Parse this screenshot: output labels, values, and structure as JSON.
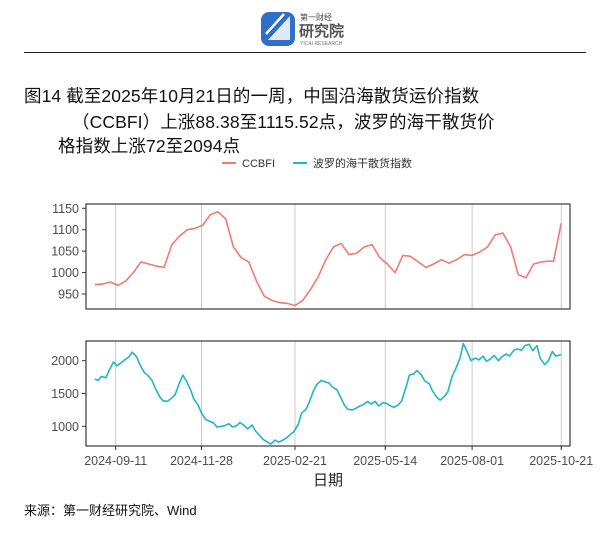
{
  "header": {
    "logo_text_cn": "第一财经",
    "logo_text_main": "研究院",
    "logo_text_sub": "YICAI RESEARCH"
  },
  "title": {
    "line1": "图14  截至2025年10月21日的一周，中国沿海散货运价指数",
    "line2": "（CCBFI）上涨88.38至1115.52点，波罗的海干散货价",
    "line3": "格指数上涨72至2094点"
  },
  "source": "来源：第一财经研究院、Wind",
  "colors": {
    "ccbfi": "#F07B72",
    "bdi": "#1FB8C3",
    "grid": "#BEBEBE",
    "axis_text": "#4D4D4D"
  },
  "chart_data": {
    "type": "line",
    "xlabel": "日期",
    "x_ticks": [
      "2024-09-11",
      "2024-11-28",
      "2025-02-21",
      "2025-05-14",
      "2025-08-01",
      "2025-10-21"
    ],
    "x_range": [
      "2024-08-15",
      "2025-10-29"
    ],
    "legend": {
      "placement": "top",
      "entries": [
        "CCBFI",
        "波罗的海干散货指数"
      ]
    },
    "panels": [
      {
        "series": "CCBFI",
        "ylim": [
          915,
          1160
        ],
        "y_ticks": [
          950,
          1000,
          1050,
          1100,
          1150
        ],
        "points": [
          [
            "2024-08-23",
            972
          ],
          [
            "2024-08-30",
            973
          ],
          [
            "2024-09-06",
            978
          ],
          [
            "2024-09-13",
            970
          ],
          [
            "2024-09-20",
            980
          ],
          [
            "2024-09-27",
            1000
          ],
          [
            "2024-10-04",
            1025
          ],
          [
            "2024-10-11",
            1020
          ],
          [
            "2024-10-18",
            1015
          ],
          [
            "2024-10-25",
            1012
          ],
          [
            "2024-11-01",
            1065
          ],
          [
            "2024-11-08",
            1085
          ],
          [
            "2024-11-15",
            1100
          ],
          [
            "2024-11-22",
            1103
          ],
          [
            "2024-11-29",
            1110
          ],
          [
            "2024-12-06",
            1135
          ],
          [
            "2024-12-13",
            1142
          ],
          [
            "2024-12-20",
            1125
          ],
          [
            "2024-12-27",
            1060
          ],
          [
            "2025-01-03",
            1035
          ],
          [
            "2025-01-10",
            1025
          ],
          [
            "2025-01-17",
            980
          ],
          [
            "2025-01-24",
            945
          ],
          [
            "2025-01-31",
            935
          ],
          [
            "2025-02-07",
            930
          ],
          [
            "2025-02-14",
            928
          ],
          [
            "2025-02-21",
            923
          ],
          [
            "2025-02-28",
            935
          ],
          [
            "2025-03-07",
            960
          ],
          [
            "2025-03-14",
            990
          ],
          [
            "2025-03-21",
            1030
          ],
          [
            "2025-03-28",
            1060
          ],
          [
            "2025-04-04",
            1068
          ],
          [
            "2025-04-11",
            1042
          ],
          [
            "2025-04-18",
            1045
          ],
          [
            "2025-04-25",
            1060
          ],
          [
            "2025-05-02",
            1065
          ],
          [
            "2025-05-09",
            1035
          ],
          [
            "2025-05-16",
            1020
          ],
          [
            "2025-05-23",
            1000
          ],
          [
            "2025-05-30",
            1040
          ],
          [
            "2025-06-06",
            1038
          ],
          [
            "2025-06-13",
            1025
          ],
          [
            "2025-06-20",
            1012
          ],
          [
            "2025-06-27",
            1020
          ],
          [
            "2025-07-04",
            1030
          ],
          [
            "2025-07-11",
            1022
          ],
          [
            "2025-07-18",
            1030
          ],
          [
            "2025-07-25",
            1042
          ],
          [
            "2025-08-01",
            1040
          ],
          [
            "2025-08-08",
            1048
          ],
          [
            "2025-08-15",
            1060
          ],
          [
            "2025-08-22",
            1088
          ],
          [
            "2025-08-29",
            1092
          ],
          [
            "2025-09-05",
            1060
          ],
          [
            "2025-09-12",
            995
          ],
          [
            "2025-09-19",
            988
          ],
          [
            "2025-09-26",
            1020
          ],
          [
            "2025-10-03",
            1025
          ],
          [
            "2025-10-10",
            1027
          ],
          [
            "2025-10-14",
            1026
          ],
          [
            "2025-10-21",
            1115
          ]
        ]
      },
      {
        "series": "波罗的海干散货指数",
        "ylim": [
          700,
          2300
        ],
        "y_ticks": [
          1000,
          1500,
          2000
        ],
        "points": [
          [
            "2024-08-23",
            1720
          ],
          [
            "2024-08-26",
            1700
          ],
          [
            "2024-08-29",
            1760
          ],
          [
            "2024-09-02",
            1740
          ],
          [
            "2024-09-05",
            1850
          ],
          [
            "2024-09-09",
            1980
          ],
          [
            "2024-09-12",
            1920
          ],
          [
            "2024-09-16",
            1970
          ],
          [
            "2024-09-19",
            2010
          ],
          [
            "2024-09-23",
            2060
          ],
          [
            "2024-09-26",
            2130
          ],
          [
            "2024-09-30",
            2060
          ],
          [
            "2024-10-03",
            1940
          ],
          [
            "2024-10-07",
            1820
          ],
          [
            "2024-10-10",
            1780
          ],
          [
            "2024-10-14",
            1700
          ],
          [
            "2024-10-17",
            1580
          ],
          [
            "2024-10-21",
            1450
          ],
          [
            "2024-10-24",
            1390
          ],
          [
            "2024-10-28",
            1380
          ],
          [
            "2024-10-31",
            1420
          ],
          [
            "2024-11-04",
            1480
          ],
          [
            "2024-11-07",
            1620
          ],
          [
            "2024-11-11",
            1780
          ],
          [
            "2024-11-14",
            1700
          ],
          [
            "2024-11-18",
            1560
          ],
          [
            "2024-11-21",
            1420
          ],
          [
            "2024-11-25",
            1320
          ],
          [
            "2024-11-28",
            1200
          ],
          [
            "2024-12-02",
            1100
          ],
          [
            "2024-12-05",
            1080
          ],
          [
            "2024-12-09",
            1050
          ],
          [
            "2024-12-12",
            990
          ],
          [
            "2024-12-16",
            1000
          ],
          [
            "2024-12-19",
            1010
          ],
          [
            "2024-12-23",
            1040
          ],
          [
            "2024-12-26",
            990
          ],
          [
            "2024-12-30",
            1010
          ],
          [
            "2025-01-02",
            1060
          ],
          [
            "2025-01-06",
            1010
          ],
          [
            "2025-01-09",
            960
          ],
          [
            "2025-01-13",
            1020
          ],
          [
            "2025-01-16",
            930
          ],
          [
            "2025-01-20",
            860
          ],
          [
            "2025-01-23",
            800
          ],
          [
            "2025-01-27",
            760
          ],
          [
            "2025-01-30",
            730
          ],
          [
            "2025-02-03",
            790
          ],
          [
            "2025-02-06",
            760
          ],
          [
            "2025-02-10",
            790
          ],
          [
            "2025-02-13",
            820
          ],
          [
            "2025-02-17",
            880
          ],
          [
            "2025-02-20",
            920
          ],
          [
            "2025-02-24",
            1030
          ],
          [
            "2025-02-27",
            1200
          ],
          [
            "2025-03-03",
            1260
          ],
          [
            "2025-03-06",
            1370
          ],
          [
            "2025-03-10",
            1550
          ],
          [
            "2025-03-13",
            1640
          ],
          [
            "2025-03-17",
            1700
          ],
          [
            "2025-03-20",
            1680
          ],
          [
            "2025-03-24",
            1660
          ],
          [
            "2025-03-27",
            1600
          ],
          [
            "2025-03-31",
            1560
          ],
          [
            "2025-04-03",
            1460
          ],
          [
            "2025-04-07",
            1320
          ],
          [
            "2025-04-10",
            1260
          ],
          [
            "2025-04-14",
            1250
          ],
          [
            "2025-04-17",
            1270
          ],
          [
            "2025-04-21",
            1310
          ],
          [
            "2025-04-24",
            1330
          ],
          [
            "2025-04-28",
            1380
          ],
          [
            "2025-05-01",
            1340
          ],
          [
            "2025-05-05",
            1380
          ],
          [
            "2025-05-08",
            1310
          ],
          [
            "2025-05-12",
            1360
          ],
          [
            "2025-05-15",
            1350
          ],
          [
            "2025-05-19",
            1310
          ],
          [
            "2025-05-22",
            1290
          ],
          [
            "2025-05-26",
            1330
          ],
          [
            "2025-05-29",
            1390
          ],
          [
            "2025-06-02",
            1600
          ],
          [
            "2025-06-05",
            1780
          ],
          [
            "2025-06-09",
            1800
          ],
          [
            "2025-06-12",
            1850
          ],
          [
            "2025-06-16",
            1780
          ],
          [
            "2025-06-19",
            1690
          ],
          [
            "2025-06-23",
            1650
          ],
          [
            "2025-06-26",
            1540
          ],
          [
            "2025-06-30",
            1440
          ],
          [
            "2025-07-03",
            1400
          ],
          [
            "2025-07-07",
            1460
          ],
          [
            "2025-07-10",
            1530
          ],
          [
            "2025-07-14",
            1770
          ],
          [
            "2025-07-17",
            1870
          ],
          [
            "2025-07-21",
            2040
          ],
          [
            "2025-07-24",
            2260
          ],
          [
            "2025-07-28",
            2120
          ],
          [
            "2025-07-31",
            2000
          ],
          [
            "2025-08-04",
            2040
          ],
          [
            "2025-08-07",
            2010
          ],
          [
            "2025-08-11",
            2070
          ],
          [
            "2025-08-14",
            1990
          ],
          [
            "2025-08-18",
            2030
          ],
          [
            "2025-08-21",
            2080
          ],
          [
            "2025-08-25",
            2000
          ],
          [
            "2025-08-28",
            2060
          ],
          [
            "2025-09-01",
            2100
          ],
          [
            "2025-09-04",
            2070
          ],
          [
            "2025-09-08",
            2160
          ],
          [
            "2025-09-11",
            2180
          ],
          [
            "2025-09-15",
            2160
          ],
          [
            "2025-09-18",
            2230
          ],
          [
            "2025-09-22",
            2250
          ],
          [
            "2025-09-25",
            2150
          ],
          [
            "2025-09-29",
            2230
          ],
          [
            "2025-10-02",
            2030
          ],
          [
            "2025-10-06",
            1940
          ],
          [
            "2025-10-09",
            1990
          ],
          [
            "2025-10-13",
            2140
          ],
          [
            "2025-10-16",
            2070
          ],
          [
            "2025-10-21",
            2094
          ]
        ]
      }
    ]
  }
}
